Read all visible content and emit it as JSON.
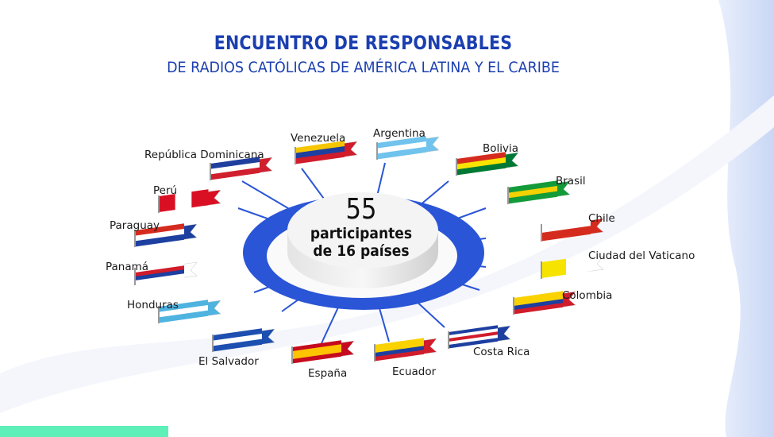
{
  "header": {
    "title": "ENCUENTRO DE RESPONSABLES",
    "subtitle": "DE RADIOS CATÓLICAS DE AMÉRICA LATINA Y EL CARIBE"
  },
  "hub": {
    "number": "55",
    "line1": "participantes",
    "line2": "de 16 países"
  },
  "colors": {
    "brand": "#1b3fb0",
    "hub_ring": "#2a55d6",
    "accent_bar": "#5ef0b8"
  },
  "countries": [
    {
      "name": "República Dominicana",
      "stripes": [
        "#1f3f9e",
        "#ffffff",
        "#d0202e"
      ]
    },
    {
      "name": "Venezuela",
      "stripes": [
        "#f6c600",
        "#1d3fa0",
        "#d01c2b"
      ]
    },
    {
      "name": "Argentina",
      "stripes": [
        "#6fc3ec",
        "#ffffff",
        "#6fc3ec"
      ]
    },
    {
      "name": "Bolivia",
      "stripes": [
        "#d52b1e",
        "#f9e300",
        "#007934"
      ]
    },
    {
      "name": "Brasil",
      "stripes": [
        "#139b3a",
        "#f4d100",
        "#139b3a"
      ]
    },
    {
      "name": "Chile",
      "stripes": [
        "#ffffff",
        "#d52b1e"
      ]
    },
    {
      "name": "Ciudad del Vaticano",
      "stripes": [
        "#f7e300",
        "#ffffff"
      ],
      "vertical": true
    },
    {
      "name": "Colombia",
      "stripes": [
        "#f9d200",
        "#f9d200",
        "#1d3fa0",
        "#d01c2b"
      ]
    },
    {
      "name": "Costa Rica",
      "stripes": [
        "#1d3fa0",
        "#ffffff",
        "#d01c2b",
        "#ffffff",
        "#1d3fa0"
      ]
    },
    {
      "name": "Ecuador",
      "stripes": [
        "#f9d200",
        "#f9d200",
        "#1d3fa0",
        "#d01c2b"
      ]
    },
    {
      "name": "España",
      "stripes": [
        "#c60b1e",
        "#ffc400",
        "#ffc400",
        "#c60b1e"
      ]
    },
    {
      "name": "El Salvador",
      "stripes": [
        "#1d4fb0",
        "#ffffff",
        "#1d4fb0"
      ]
    },
    {
      "name": "Honduras",
      "stripes": [
        "#4fb3e0",
        "#ffffff",
        "#4fb3e0"
      ]
    },
    {
      "name": "Panamá",
      "stripes": [
        "#ffffff",
        "#d01c2b",
        "#1d3fa0",
        "#ffffff"
      ]
    },
    {
      "name": "Paraguay",
      "stripes": [
        "#d52b1e",
        "#ffffff",
        "#1d3fa0"
      ]
    },
    {
      "name": "Perú",
      "stripes": [
        "#d91023",
        "#ffffff",
        "#d91023"
      ],
      "vertical": true
    }
  ]
}
